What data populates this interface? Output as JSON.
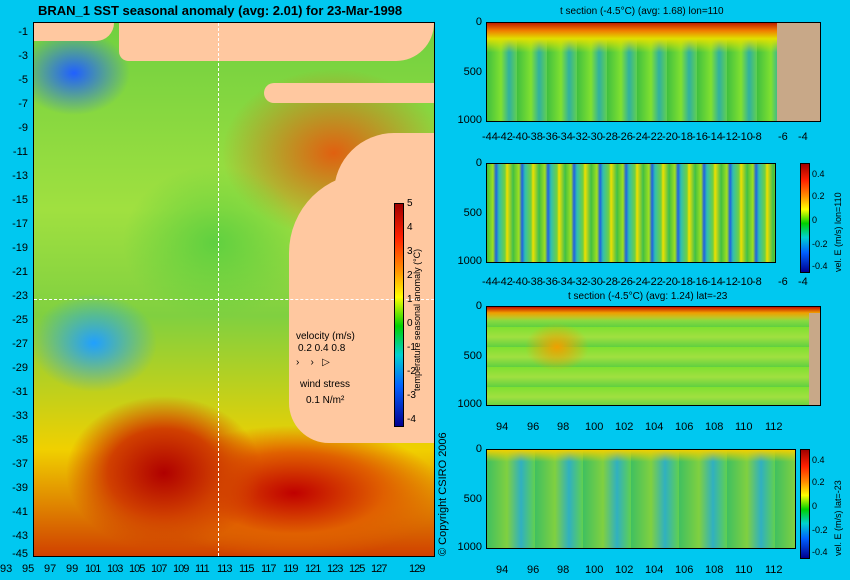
{
  "main_title": "BRAN_1  SST seasonal anomaly  (avg: 2.01)  for 23-Mar-1998",
  "map": {
    "y_ticks": [
      "-1",
      "-3",
      "-5",
      "-7",
      "-9",
      "-11",
      "-13",
      "-15",
      "-17",
      "-19",
      "-21",
      "-23",
      "-25",
      "-27",
      "-29",
      "-31",
      "-33",
      "-35",
      "-37",
      "-39",
      "-41",
      "-43",
      "-45"
    ],
    "x_ticks": [
      "93",
      "95",
      "97",
      "99",
      "101",
      "103",
      "105",
      "107",
      "109",
      "111",
      "113",
      "115",
      "117",
      "119",
      "121",
      "123",
      "125",
      "127",
      "129"
    ],
    "colorbar_label": "temperature seasonal anomaly (°C)",
    "colorbar_ticks": [
      "5",
      "4",
      "3",
      "2",
      "1",
      "0",
      "-1",
      "-2",
      "-3",
      "-4"
    ],
    "velocity_label": "velocity (m/s)",
    "velocity_values": "0.2 0.4 0.8",
    "wind_label": "wind stress",
    "wind_value": "0.1 N/m²",
    "copyright": "© Copyright CSIRO 2006"
  },
  "panels": [
    {
      "title": "t section (-4.5°C)   (avg: 1.68)  lon=110",
      "y_ticks": [
        "0",
        "500",
        "1000"
      ],
      "x_ticks": [
        "-44",
        "-42",
        "-40",
        "-38",
        "-36",
        "-34",
        "-32",
        "-30",
        "-28",
        "-26",
        "-24",
        "-22",
        "-20",
        "-18",
        "-16",
        "-14",
        "-12",
        "-10",
        "-8",
        "-6",
        "-4"
      ]
    },
    {
      "side_label": "vel. E (m/s) lon=110",
      "y_ticks": [
        "0",
        "500",
        "1000"
      ],
      "x_ticks": [
        "-44",
        "-42",
        "-40",
        "-38",
        "-36",
        "-34",
        "-32",
        "-30",
        "-28",
        "-26",
        "-24",
        "-22",
        "-20",
        "-18",
        "-16",
        "-14",
        "-12",
        "-10",
        "-8",
        "-6",
        "-4"
      ],
      "cbar_ticks": [
        "0.4",
        "0.2",
        "0",
        "-0.2",
        "-0.4"
      ]
    },
    {
      "title": "t section (-4.5°C)  (avg: 1.24)  lat=-23",
      "y_ticks": [
        "0",
        "500",
        "1000"
      ],
      "x_ticks": [
        "94",
        "96",
        "98",
        "100",
        "102",
        "104",
        "106",
        "108",
        "110",
        "112"
      ]
    },
    {
      "side_label": "vel. E (m/s) lat=-23",
      "y_ticks": [
        "0",
        "500",
        "1000"
      ],
      "x_ticks": [
        "94",
        "96",
        "98",
        "100",
        "102",
        "104",
        "106",
        "108",
        "110",
        "112"
      ],
      "cbar_ticks": [
        "0.4",
        "0.2",
        "0",
        "-0.2",
        "-0.4"
      ]
    }
  ]
}
